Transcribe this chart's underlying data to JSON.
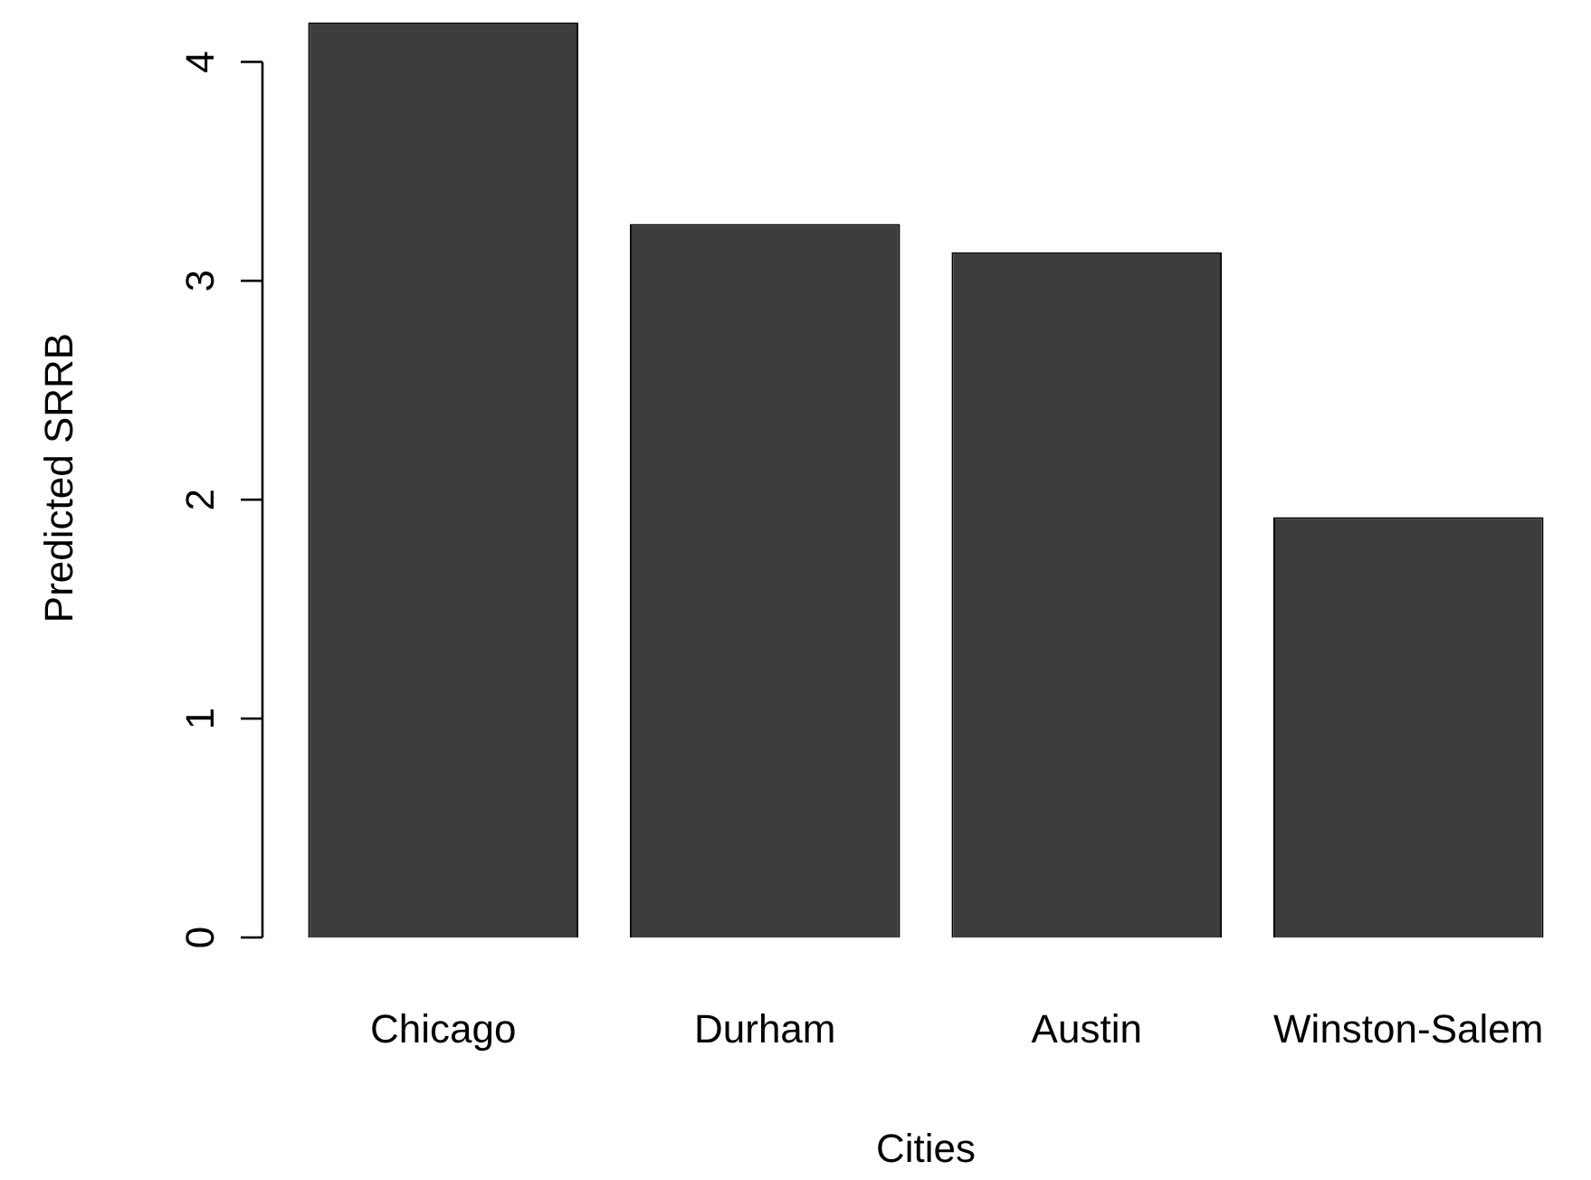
{
  "chart_data": {
    "type": "bar",
    "xlabel": "Cities",
    "ylabel": "Predicted SRRB",
    "categories": [
      "Chicago",
      "Durham",
      "Austin",
      "Winston-Salem"
    ],
    "values": [
      4.18,
      3.26,
      3.13,
      1.92
    ],
    "color": "#3d3d3d",
    "ylim": [
      0,
      4.2
    ],
    "yticks": [
      0,
      1,
      2,
      3,
      4
    ]
  }
}
